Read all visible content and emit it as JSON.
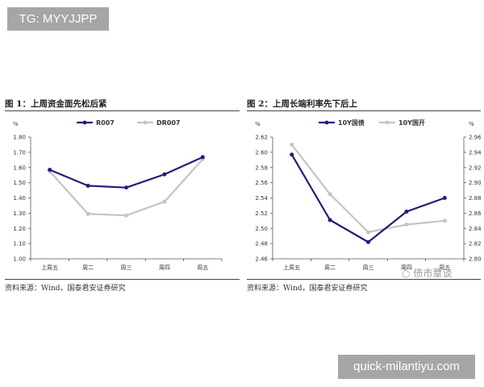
{
  "watermark_top": "TG: MYYJJPP",
  "watermark_bottom": "quick-milantiyu.com",
  "watermark_logo": "债市覃谈",
  "fig1": {
    "title": "图 1：上周资金面先松后紧",
    "source": "资料来源：Wind，国泰君安证券研究"
  },
  "fig2": {
    "title": "图 2：上周长端利率先下后上",
    "source": "资料来源：Wind，国泰君安证券研究"
  },
  "chart_data": [
    {
      "type": "line",
      "categories": [
        "上周五",
        "周二",
        "周三",
        "周四",
        "周五"
      ],
      "ylabel": "%",
      "ylim": [
        1.0,
        1.8
      ],
      "yticks": [
        "1.00",
        "1.10",
        "1.20",
        "1.30",
        "1.40",
        "1.50",
        "1.60",
        "1.70",
        "1.80"
      ],
      "legend_position": "top",
      "grid": false,
      "series": [
        {
          "name": "R007",
          "color": "#1f1f7a",
          "values": [
            1.585,
            1.48,
            1.468,
            1.555,
            1.668
          ]
        },
        {
          "name": "DR007",
          "color": "#c4c4c4",
          "values": [
            1.575,
            1.295,
            1.285,
            1.375,
            1.655
          ]
        }
      ]
    },
    {
      "type": "line",
      "categories": [
        "上周五",
        "周二",
        "周三",
        "周四",
        "周五"
      ],
      "ylabel": "%",
      "ylim": [
        2.46,
        2.62
      ],
      "yticks": [
        "2.46",
        "2.48",
        "2.50",
        "2.52",
        "2.54",
        "2.56",
        "2.58",
        "2.60",
        "2.62"
      ],
      "y2lim": [
        2.8,
        2.96
      ],
      "y2ticks": [
        "2.80",
        "2.82",
        "2.84",
        "2.86",
        "2.88",
        "2.90",
        "2.92",
        "2.94",
        "2.96"
      ],
      "legend_position": "top",
      "grid": false,
      "series": [
        {
          "name": "10Y国债",
          "axis": "left",
          "color": "#1f1f7a",
          "values": [
            2.597,
            2.511,
            2.482,
            2.522,
            2.54
          ]
        },
        {
          "name": "10Y国开",
          "axis": "right",
          "color": "#c4c4c4",
          "values": [
            2.95,
            2.885,
            2.835,
            2.845,
            2.85
          ]
        }
      ]
    }
  ]
}
